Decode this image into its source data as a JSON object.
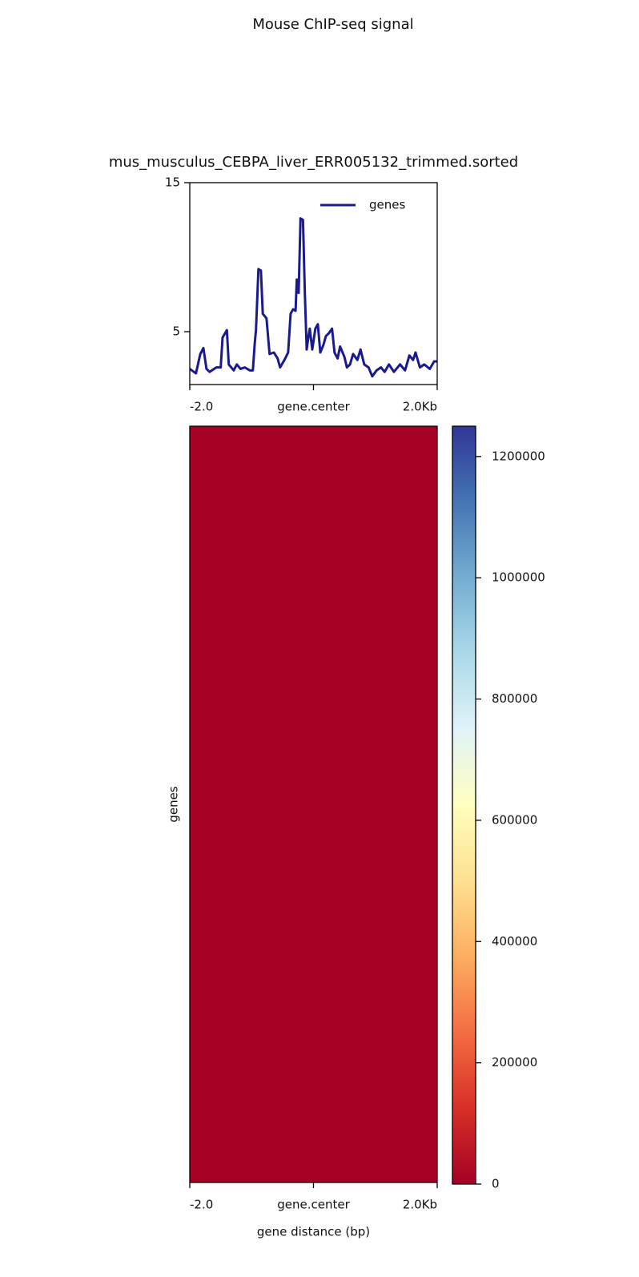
{
  "title": "Mouse ChIP-seq signal",
  "chart_data": [
    {
      "type": "line",
      "title": "mus_musculus_CEBPA_liver_ERR005132_trimmed.sorted",
      "x": [
        -2.0,
        -1.9,
        -1.83,
        -1.78,
        -1.73,
        -1.68,
        -1.57,
        -1.5,
        -1.47,
        -1.4,
        -1.37,
        -1.29,
        -1.24,
        -1.18,
        -1.11,
        -1.03,
        -0.98,
        -0.95,
        -0.93,
        -0.89,
        -0.85,
        -0.82,
        -0.76,
        -0.71,
        -0.64,
        -0.58,
        -0.54,
        -0.47,
        -0.41,
        -0.37,
        -0.33,
        -0.29,
        -0.27,
        -0.24,
        -0.21,
        -0.17,
        -0.14,
        -0.11,
        -0.08,
        -0.06,
        -0.02,
        0.03,
        0.07,
        0.11,
        0.16,
        0.2,
        0.25,
        0.3,
        0.34,
        0.39,
        0.43,
        0.5,
        0.54,
        0.59,
        0.64,
        0.71,
        0.76,
        0.82,
        0.89,
        0.95,
        1.02,
        1.09,
        1.15,
        1.22,
        1.3,
        1.4,
        1.48,
        1.55,
        1.61,
        1.65,
        1.72,
        1.79,
        1.88,
        1.95,
        2.0
      ],
      "series": [
        {
          "name": "genes",
          "color": "#1a1a8f",
          "values": [
            2.5,
            2.2,
            3.5,
            3.9,
            2.5,
            2.3,
            2.6,
            2.6,
            4.6,
            5.1,
            2.8,
            2.4,
            2.8,
            2.5,
            2.6,
            2.4,
            2.4,
            4.2,
            5.1,
            9.2,
            9.1,
            6.2,
            5.9,
            3.5,
            3.6,
            3.2,
            2.6,
            3.1,
            3.6,
            6.2,
            6.5,
            6.4,
            8.5,
            7.6,
            12.6,
            12.5,
            7.6,
            3.8,
            4.7,
            5.2,
            3.8,
            5.2,
            5.5,
            3.6,
            4.1,
            4.7,
            4.9,
            5.2,
            3.6,
            3.2,
            4.0,
            3.3,
            2.6,
            2.8,
            3.5,
            3.1,
            3.8,
            2.8,
            2.6,
            2.0,
            2.4,
            2.6,
            2.3,
            2.8,
            2.3,
            2.8,
            2.4,
            3.4,
            3.1,
            3.6,
            2.6,
            2.8,
            2.5,
            3.0,
            3.0
          ]
        }
      ],
      "xlim": [
        -2,
        2
      ],
      "xticks": [
        {
          "value": -2,
          "label": "-2.0"
        },
        {
          "value": 0,
          "label": "gene.center"
        },
        {
          "value": 2,
          "label": "2.0Kb"
        }
      ],
      "ylim": [
        1.45,
        15
      ],
      "yticks": [
        5,
        15
      ],
      "legend": "upper right"
    },
    {
      "type": "heatmap",
      "ylabel": "genes",
      "xlabel": "gene distance (bp)",
      "xlim": [
        -2,
        2
      ],
      "xticks": [
        {
          "value": -2,
          "label": "-2.0"
        },
        {
          "value": 0,
          "label": "gene.center"
        },
        {
          "value": 2,
          "label": "2.0Kb"
        }
      ],
      "z": [
        [
          0
        ]
      ],
      "colormap": [
        "#a50026",
        "#d73027",
        "#f46d43",
        "#fdae61",
        "#fee090",
        "#ffffbf",
        "#e0f3f8",
        "#abd9e9",
        "#74add1",
        "#4575b4",
        "#313695"
      ],
      "zlim": [
        0,
        1250000
      ],
      "zticks": [
        0,
        200000,
        400000,
        600000,
        800000,
        1000000,
        1200000
      ]
    }
  ]
}
